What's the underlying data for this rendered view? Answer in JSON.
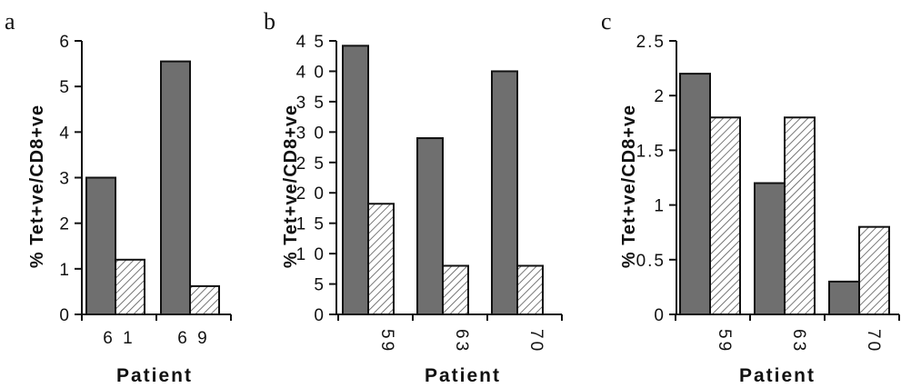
{
  "chart_data": [
    {
      "type": "bar",
      "panel": "a",
      "categories": [
        "6 1",
        "6 9"
      ],
      "series": [
        {
          "values": [
            3.0,
            5.55
          ],
          "style": "dark"
        },
        {
          "values": [
            1.2,
            0.62
          ],
          "style": "hatched"
        }
      ],
      "ylabel": "% Tet+ve/CD8+ve",
      "xlabel": "Patient",
      "ylim": [
        0,
        6
      ],
      "yticks": [
        0,
        1,
        2,
        3,
        4,
        5,
        6
      ],
      "ytick_labels": [
        "0",
        "1",
        "2",
        "3",
        "4",
        "5",
        "6"
      ],
      "xtick_rotation": 0,
      "grid": false
    },
    {
      "type": "bar",
      "panel": "b",
      "categories": [
        "59",
        "63",
        "70"
      ],
      "series": [
        {
          "values": [
            44.2,
            29.0,
            40.0
          ],
          "style": "dark"
        },
        {
          "values": [
            18.2,
            8.0,
            8.0
          ],
          "style": "hatched"
        }
      ],
      "ylabel": "% Tet+ve/CD8+ve",
      "xlabel": "Patient",
      "ylim": [
        0,
        45
      ],
      "yticks": [
        0,
        5,
        10,
        15,
        20,
        25,
        30,
        35,
        40,
        45
      ],
      "ytick_labels": [
        "0",
        "5",
        "1 0",
        "1 5",
        "2 0",
        "2 5",
        "3 0",
        "3 5",
        "4 0",
        "4 5"
      ],
      "xtick_rotation": 90,
      "grid": false
    },
    {
      "type": "bar",
      "panel": "c",
      "categories": [
        "59",
        "63",
        "70"
      ],
      "series": [
        {
          "values": [
            2.2,
            1.2,
            0.3
          ],
          "style": "dark"
        },
        {
          "values": [
            1.8,
            1.8,
            0.8
          ],
          "style": "hatched"
        }
      ],
      "ylabel": "% Tet+ve/CD8+ve",
      "xlabel": "Patient",
      "ylim": [
        0,
        2.5
      ],
      "yticks": [
        0,
        0.5,
        1,
        1.5,
        2,
        2.5
      ],
      "ytick_labels": [
        "0",
        "0.5",
        "1",
        "1.5",
        "2",
        "2.5"
      ],
      "xtick_rotation": 90,
      "grid": false
    }
  ],
  "colors": {
    "dark_bar": "#6f6f6f",
    "outline": "#111111",
    "hatch": "#555555",
    "background": "#ffffff"
  }
}
